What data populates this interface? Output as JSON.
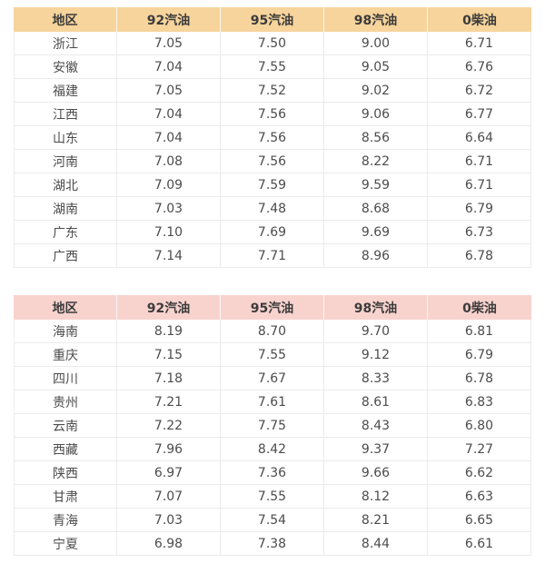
{
  "colors": {
    "table1_header_bg": "#f6d49c",
    "table2_header_bg": "#f8d3ce",
    "grid_border": "#ebebeb",
    "header_text": "#3b3b3b",
    "body_text": "#4c4c4c",
    "page_bg": "#ffffff"
  },
  "tables": [
    {
      "name": "fuel-prices-east-central-south",
      "header_bg": "#f6d49c",
      "columns": [
        "地区",
        "92汽油",
        "95汽油",
        "98汽油",
        "0柴油"
      ],
      "rows": [
        [
          "浙江",
          "7.05",
          "7.50",
          "9.00",
          "6.71"
        ],
        [
          "安徽",
          "7.04",
          "7.55",
          "9.05",
          "6.76"
        ],
        [
          "福建",
          "7.05",
          "7.52",
          "9.02",
          "6.72"
        ],
        [
          "江西",
          "7.04",
          "7.56",
          "9.06",
          "6.77"
        ],
        [
          "山东",
          "7.04",
          "7.56",
          "8.56",
          "6.64"
        ],
        [
          "河南",
          "7.08",
          "7.56",
          "8.22",
          "6.71"
        ],
        [
          "湖北",
          "7.09",
          "7.59",
          "9.59",
          "6.71"
        ],
        [
          "湖南",
          "7.03",
          "7.48",
          "8.68",
          "6.79"
        ],
        [
          "广东",
          "7.10",
          "7.69",
          "9.69",
          "6.73"
        ],
        [
          "广西",
          "7.14",
          "7.71",
          "8.96",
          "6.78"
        ]
      ]
    },
    {
      "name": "fuel-prices-southwest-northwest",
      "header_bg": "#f8d3ce",
      "columns": [
        "地区",
        "92汽油",
        "95汽油",
        "98汽油",
        "0柴油"
      ],
      "rows": [
        [
          "海南",
          "8.19",
          "8.70",
          "9.70",
          "6.81"
        ],
        [
          "重庆",
          "7.15",
          "7.55",
          "9.12",
          "6.79"
        ],
        [
          "四川",
          "7.18",
          "7.67",
          "8.33",
          "6.78"
        ],
        [
          "贵州",
          "7.21",
          "7.61",
          "8.61",
          "6.83"
        ],
        [
          "云南",
          "7.22",
          "7.75",
          "8.43",
          "6.80"
        ],
        [
          "西藏",
          "7.96",
          "8.42",
          "9.37",
          "7.27"
        ],
        [
          "陕西",
          "6.97",
          "7.36",
          "9.66",
          "6.62"
        ],
        [
          "甘肃",
          "7.07",
          "7.55",
          "8.12",
          "6.63"
        ],
        [
          "青海",
          "7.03",
          "7.54",
          "8.21",
          "6.65"
        ],
        [
          "宁夏",
          "6.98",
          "7.38",
          "8.44",
          "6.61"
        ]
      ]
    }
  ],
  "chart_data": [
    {
      "type": "table",
      "title": "",
      "columns": [
        "地区",
        "92汽油",
        "95汽油",
        "98汽油",
        "0柴油"
      ],
      "rows": [
        [
          "浙江",
          7.05,
          7.5,
          9.0,
          6.71
        ],
        [
          "安徽",
          7.04,
          7.55,
          9.05,
          6.76
        ],
        [
          "福建",
          7.05,
          7.52,
          9.02,
          6.72
        ],
        [
          "江西",
          7.04,
          7.56,
          9.06,
          6.77
        ],
        [
          "山东",
          7.04,
          7.56,
          8.56,
          6.64
        ],
        [
          "河南",
          7.08,
          7.56,
          8.22,
          6.71
        ],
        [
          "湖北",
          7.09,
          7.59,
          9.59,
          6.71
        ],
        [
          "湖南",
          7.03,
          7.48,
          8.68,
          6.79
        ],
        [
          "广东",
          7.1,
          7.69,
          9.69,
          6.73
        ],
        [
          "广西",
          7.14,
          7.71,
          8.96,
          6.78
        ]
      ]
    },
    {
      "type": "table",
      "title": "",
      "columns": [
        "地区",
        "92汽油",
        "95汽油",
        "98汽油",
        "0柴油"
      ],
      "rows": [
        [
          "海南",
          8.19,
          8.7,
          9.7,
          6.81
        ],
        [
          "重庆",
          7.15,
          7.55,
          9.12,
          6.79
        ],
        [
          "四川",
          7.18,
          7.67,
          8.33,
          6.78
        ],
        [
          "贵州",
          7.21,
          7.61,
          8.61,
          6.83
        ],
        [
          "云南",
          7.22,
          7.75,
          8.43,
          6.8
        ],
        [
          "西藏",
          7.96,
          8.42,
          9.37,
          7.27
        ],
        [
          "陕西",
          6.97,
          7.36,
          9.66,
          6.62
        ],
        [
          "甘肃",
          7.07,
          7.55,
          8.12,
          6.63
        ],
        [
          "青海",
          7.03,
          7.54,
          8.21,
          6.65
        ],
        [
          "宁夏",
          6.98,
          7.38,
          8.44,
          6.61
        ]
      ]
    }
  ]
}
